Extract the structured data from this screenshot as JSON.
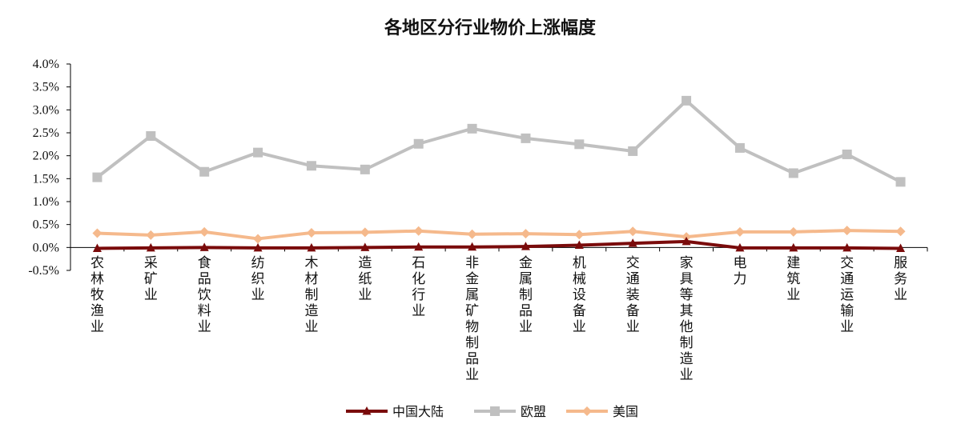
{
  "chart_data": {
    "type": "line",
    "title": "各地区分行业物价上涨幅度",
    "categories": [
      "农林牧渔业",
      "采矿业",
      "食品饮料业",
      "纺织业",
      "木材制造业",
      "造纸业",
      "石化行业",
      "非金属矿物制品业",
      "金属制品业",
      "机械设备业",
      "交通装备业",
      "家具等其他制造业",
      "电力",
      "建筑业",
      "交通运输业",
      "服务业"
    ],
    "ylim": [
      -0.005,
      0.04
    ],
    "yticks": [
      -0.005,
      0,
      0.005,
      0.01,
      0.015,
      0.02,
      0.025,
      0.03,
      0.035,
      0.04
    ],
    "ytick_labels": [
      "-0.5%",
      "0.0%",
      "0.5%",
      "1.0%",
      "1.5%",
      "2.0%",
      "2.5%",
      "3.0%",
      "3.5%",
      "4.0%"
    ],
    "grid": false,
    "legend_position": "bottom",
    "series": [
      {
        "name": "中国大陆",
        "color": "#7a0b0b",
        "marker": "triangle",
        "values": [
          -0.0002,
          -0.0001,
          0.0,
          -0.0001,
          -0.0001,
          0.0,
          0.0001,
          0.0001,
          0.0002,
          0.0005,
          0.0009,
          0.0013,
          -0.0001,
          -0.0001,
          -0.0001,
          -0.0002
        ]
      },
      {
        "name": "欧盟",
        "color": "#c0c0c0",
        "marker": "square",
        "values": [
          0.0153,
          0.0243,
          0.0165,
          0.0207,
          0.0178,
          0.017,
          0.0226,
          0.0259,
          0.0238,
          0.0225,
          0.021,
          0.032,
          0.0217,
          0.0162,
          0.0203,
          0.0143
        ]
      },
      {
        "name": "美国",
        "color": "#f5b98c",
        "marker": "diamond",
        "values": [
          0.0031,
          0.0027,
          0.0034,
          0.0019,
          0.0032,
          0.0033,
          0.0036,
          0.0029,
          0.003,
          0.0028,
          0.0035,
          0.0023,
          0.0034,
          0.0034,
          0.0037,
          0.0035
        ]
      }
    ]
  }
}
